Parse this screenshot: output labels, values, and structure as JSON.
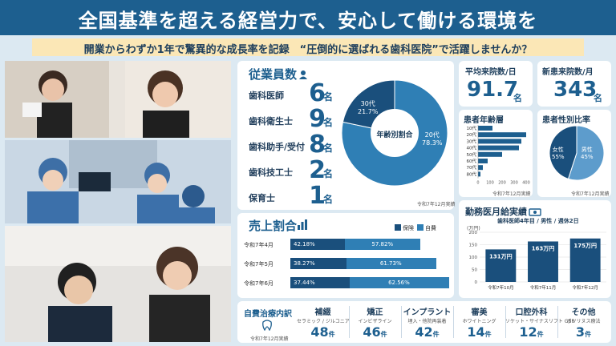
{
  "header": {
    "title": "全国基準を超える経営力で、安心して働ける環境を",
    "subtitle": "開業からわずか1年で驚異的な成長率を記録　“圧倒的に選ばれる歯科医院”で活躍しませんか？"
  },
  "employees": {
    "title": "従業員数",
    "unit": "名",
    "items": [
      {
        "label": "歯科医師",
        "value": "6"
      },
      {
        "label": "歯科衛生士",
        "value": "9"
      },
      {
        "label": "歯科助手/受付",
        "value": "8"
      },
      {
        "label": "歯科技工士",
        "value": "2"
      },
      {
        "label": "保育士",
        "value": "1"
      }
    ],
    "note": "令和7年12月実績"
  },
  "age_pie": {
    "center_label": "年齢別割合",
    "slices": [
      {
        "label": "20代",
        "pct": "78.3%",
        "value": 78.3,
        "color": "#2f7fb5"
      },
      {
        "label": "30代",
        "pct": "21.7%",
        "value": 21.7,
        "color": "#1a4f7c"
      }
    ]
  },
  "visits": {
    "title": "平均来院数/日",
    "value": "91.7",
    "unit": "名"
  },
  "new_patients": {
    "title": "新患来院数/月",
    "value": "343",
    "unit": "名"
  },
  "patient_age": {
    "title": "患者年齢層",
    "note": "令和7年12月実績",
    "categories": [
      "10代",
      "20代",
      "30代",
      "40代",
      "50代",
      "60代",
      "70代",
      "80代"
    ],
    "values": [
      120,
      420,
      360,
      340,
      200,
      80,
      40,
      20
    ],
    "ticks": [
      "0",
      "100",
      "200",
      "300",
      "400"
    ]
  },
  "patient_gender": {
    "title": "患者性別比率",
    "note": "令和7年12月実績",
    "slices": [
      {
        "label": "女性",
        "pct": "55%",
        "value": 55,
        "color": "#5d9ccc"
      },
      {
        "label": "男性",
        "pct": "45%",
        "value": 45,
        "color": "#1a4f7c"
      }
    ]
  },
  "sales": {
    "title": "売上割合",
    "legend": [
      {
        "label": "保険",
        "color": "#1a4f7c"
      },
      {
        "label": "自費",
        "color": "#2f7fb5"
      }
    ],
    "rows": [
      {
        "month": "令和7年4月",
        "insurance": "42.18%",
        "self": "57.82%",
        "ins_val": 42.18,
        "self_val": 57.82,
        "total": 0.82
      },
      {
        "month": "令和7年5月",
        "insurance": "38.27%",
        "self": "61.73%",
        "ins_val": 38.27,
        "self_val": 61.73,
        "total": 0.92
      },
      {
        "month": "令和7年6月",
        "insurance": "37.44%",
        "self": "62.56%",
        "ins_val": 37.44,
        "self_val": 62.56,
        "total": 1.0
      }
    ]
  },
  "salary": {
    "title": "勤務医月給実績",
    "subtitle": "歯科医師4年目 / 男性 / 週休2日",
    "y_unit": "(万円)",
    "ticks": [
      "0",
      "50",
      "100",
      "150",
      "200"
    ],
    "categories": [
      "令和7年10月",
      "令和7年11月",
      "令和7年12月"
    ],
    "values": [
      131,
      163,
      175
    ],
    "labels": [
      "131万円",
      "163万円",
      "175万円"
    ],
    "ymax": 200
  },
  "self_pay": {
    "title": "自費治療内訳",
    "note": "令和7年12月実績",
    "unit": "件",
    "items": [
      {
        "title": "補綴",
        "sub": "セラミック / ジルコニア",
        "count": "48"
      },
      {
        "title": "矯正",
        "sub": "インビザライン",
        "count": "46"
      },
      {
        "title": "インプラント",
        "sub": "埋入・他院再装着",
        "count": "42"
      },
      {
        "title": "審美",
        "sub": "ホワイトニング",
        "count": "14"
      },
      {
        "title": "口腔外科",
        "sub": "ソケット・サイナスリフト GBR",
        "count": "12"
      },
      {
        "title": "その他",
        "sub": "ボツリヌス療法",
        "count": "3"
      }
    ]
  }
}
